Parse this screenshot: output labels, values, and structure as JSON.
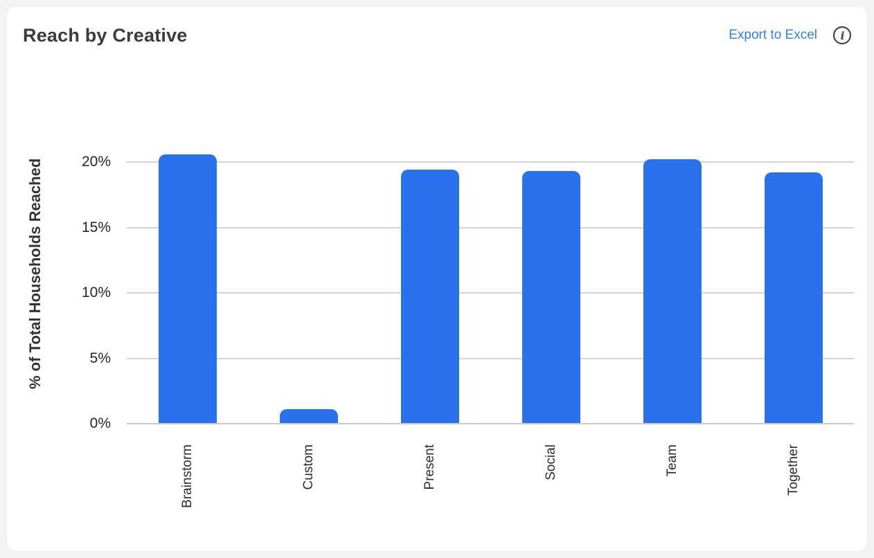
{
  "header": {
    "title": "Reach by Creative",
    "export_label": "Export to Excel",
    "link_color": "#2e7ff1",
    "info_glyph": "i",
    "info_icon_color": "#454545"
  },
  "chart_data": {
    "type": "bar",
    "title": "Reach by Creative",
    "categories": [
      "Brainstorm",
      "Custom",
      "Present",
      "Social",
      "Team",
      "Together"
    ],
    "values": [
      20.6,
      1.1,
      19.4,
      19.3,
      20.2,
      19.2
    ],
    "xlabel": "",
    "ylabel": "% of Total Households Reached",
    "yticks": [
      0,
      5,
      10,
      15,
      20
    ],
    "ytick_labels": [
      "0%",
      "5%",
      "10%",
      "15%",
      "20%"
    ],
    "ylim": [
      0,
      21.5
    ],
    "grid": true,
    "legend": "none",
    "bar_color": "#2a72ec",
    "grid_color": "#d4d4d4",
    "axis_color": "#c9c9c9"
  }
}
